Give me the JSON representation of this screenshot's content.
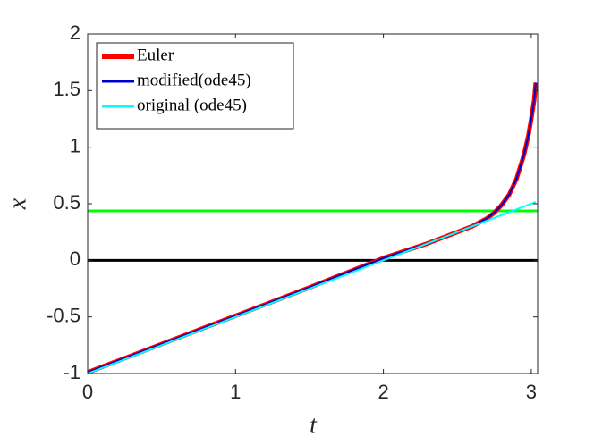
{
  "chart_data": {
    "type": "line",
    "xlabel": "t",
    "ylabel": "x",
    "xlim": [
      0,
      3.043
    ],
    "ylim": [
      -1,
      2
    ],
    "xticks": [
      0,
      1,
      2,
      3
    ],
    "yticks": [
      -1,
      -0.5,
      0,
      0.5,
      1,
      1.5,
      2
    ],
    "legend_position": "top-left",
    "hlines": [
      {
        "value": 0.437,
        "color": "#00ff00"
      },
      {
        "value": 0,
        "color": "#000000"
      }
    ],
    "series": [
      {
        "name": "Euler",
        "color": "#ff0000",
        "width": 5,
        "x": [
          0,
          0.5,
          1,
          1.5,
          2,
          2.3,
          2.5,
          2.6,
          2.7,
          2.75,
          2.8,
          2.85,
          2.9,
          2.95,
          2.98,
          3.0,
          3.02,
          3.03
        ],
        "values": [
          -0.99,
          -0.74,
          -0.49,
          -0.24,
          0.02,
          0.15,
          0.25,
          0.3,
          0.37,
          0.42,
          0.49,
          0.58,
          0.72,
          0.93,
          1.1,
          1.25,
          1.42,
          1.57
        ]
      },
      {
        "name": "modified(ode45)",
        "color": "#0000cc",
        "width": 2,
        "x": [
          0,
          0.5,
          1,
          1.5,
          2,
          2.3,
          2.5,
          2.6,
          2.7,
          2.75,
          2.8,
          2.85,
          2.9,
          2.95,
          2.98,
          3.0,
          3.02,
          3.03
        ],
        "values": [
          -0.99,
          -0.74,
          -0.49,
          -0.24,
          0.02,
          0.15,
          0.25,
          0.3,
          0.37,
          0.42,
          0.49,
          0.58,
          0.72,
          0.93,
          1.1,
          1.25,
          1.42,
          1.57
        ]
      },
      {
        "name": "original (ode45)",
        "color": "#00ffff",
        "width": 2,
        "x": [
          0,
          1,
          2,
          3.03
        ],
        "values": [
          -1,
          -0.5,
          0,
          0.515
        ]
      }
    ]
  }
}
